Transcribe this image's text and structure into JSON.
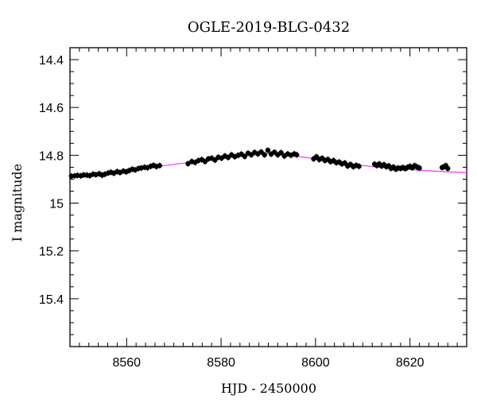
{
  "chart_data": {
    "type": "scatter",
    "title": "OGLE-2019-BLG-0432",
    "xlabel": "HJD - 2450000",
    "ylabel": "I magnitude",
    "xlim": [
      8548,
      8632
    ],
    "ylim": [
      15.6,
      14.35
    ],
    "y_inverted": true,
    "x_ticks": [
      8560,
      8580,
      8600,
      8620
    ],
    "y_ticks": [
      14.4,
      14.6,
      14.8,
      15,
      15.2,
      15.4
    ],
    "x_tick_labels": [
      "8560",
      "8580",
      "8600",
      "8620"
    ],
    "y_tick_labels": [
      "14.4",
      "14.6",
      "14.8",
      "15",
      "15.2",
      "15.4"
    ],
    "grid": false,
    "colors": {
      "points": "#000000",
      "model": "#ff33ff",
      "frame": "#000000"
    },
    "series": [
      {
        "kind": "points",
        "x": [
          8548.3,
          8549.0,
          8549.6,
          8550.3,
          8550.9,
          8551.6,
          8552.2,
          8552.9,
          8553.5,
          8554.2,
          8554.8,
          8555.4,
          8556.1,
          8556.7,
          8557.3,
          8558.0,
          8558.6,
          8559.3,
          8559.9,
          8560.5,
          8561.2,
          8561.8,
          8562.5,
          8563.1,
          8563.8,
          8564.4,
          8565.1,
          8565.7,
          8566.3,
          8567.0,
          8573.0,
          8573.8,
          8574.5,
          8575.2,
          8575.9,
          8576.6,
          8577.3,
          8578.0,
          8578.7,
          8579.4,
          8580.1,
          8580.8,
          8581.5,
          8582.2,
          8582.9,
          8583.6,
          8584.3,
          8585.0,
          8585.7,
          8586.4,
          8587.1,
          8587.8,
          8588.5,
          8589.2,
          8589.9,
          8590.6,
          8591.3,
          8592.0,
          8592.7,
          8593.4,
          8594.1,
          8594.8,
          8595.5,
          8596.0,
          8599.6,
          8600.2,
          8600.8,
          8601.4,
          8602.0,
          8602.6,
          8603.2,
          8603.8,
          8604.4,
          8605.0,
          8605.6,
          8606.2,
          8606.8,
          8607.4,
          8608.0,
          8608.6,
          8609.2,
          8612.5,
          8613.0,
          8613.5,
          8614.0,
          8614.5,
          8615.0,
          8615.5,
          8616.0,
          8616.5,
          8617.0,
          8617.5,
          8618.0,
          8618.5,
          8619.0,
          8619.5,
          8620.0,
          8620.5,
          8621.0,
          8621.5,
          8622.0,
          8626.8,
          8627.2,
          8627.6,
          8628.0
        ],
        "y": [
          14.887,
          14.886,
          14.884,
          14.886,
          14.882,
          14.883,
          14.885,
          14.879,
          14.881,
          14.877,
          14.883,
          14.879,
          14.874,
          14.871,
          14.875,
          14.868,
          14.872,
          14.866,
          14.869,
          14.864,
          14.858,
          14.861,
          14.855,
          14.853,
          14.85,
          14.852,
          14.846,
          14.842,
          14.847,
          14.843,
          14.835,
          14.826,
          14.83,
          14.822,
          14.818,
          14.826,
          14.815,
          14.812,
          14.82,
          14.808,
          14.812,
          14.803,
          14.809,
          14.798,
          14.806,
          14.8,
          14.795,
          14.805,
          14.791,
          14.798,
          14.788,
          14.794,
          14.786,
          14.798,
          14.779,
          14.795,
          14.787,
          14.798,
          14.789,
          14.803,
          14.794,
          14.8,
          14.794,
          14.798,
          14.815,
          14.806,
          14.818,
          14.812,
          14.822,
          14.817,
          14.827,
          14.822,
          14.831,
          14.828,
          14.836,
          14.832,
          14.845,
          14.838,
          14.848,
          14.842,
          14.846,
          14.837,
          14.843,
          14.836,
          14.845,
          14.839,
          14.848,
          14.844,
          14.855,
          14.849,
          14.858,
          14.853,
          14.855,
          14.851,
          14.856,
          14.85,
          14.846,
          14.852,
          14.843,
          14.849,
          14.853,
          14.851,
          14.848,
          14.843,
          14.855
        ]
      },
      {
        "kind": "model-curve",
        "x": [
          8548,
          8552,
          8556,
          8560,
          8564,
          8568,
          8572,
          8576,
          8580,
          8584,
          8588,
          8592,
          8596,
          8600,
          8604,
          8608,
          8612,
          8616,
          8620,
          8624,
          8628,
          8632
        ],
        "y": [
          14.883,
          14.878,
          14.872,
          14.864,
          14.853,
          14.843,
          14.833,
          14.821,
          14.809,
          14.799,
          14.793,
          14.794,
          14.803,
          14.815,
          14.827,
          14.838,
          14.847,
          14.854,
          14.86,
          14.865,
          14.869,
          14.872
        ]
      }
    ]
  }
}
